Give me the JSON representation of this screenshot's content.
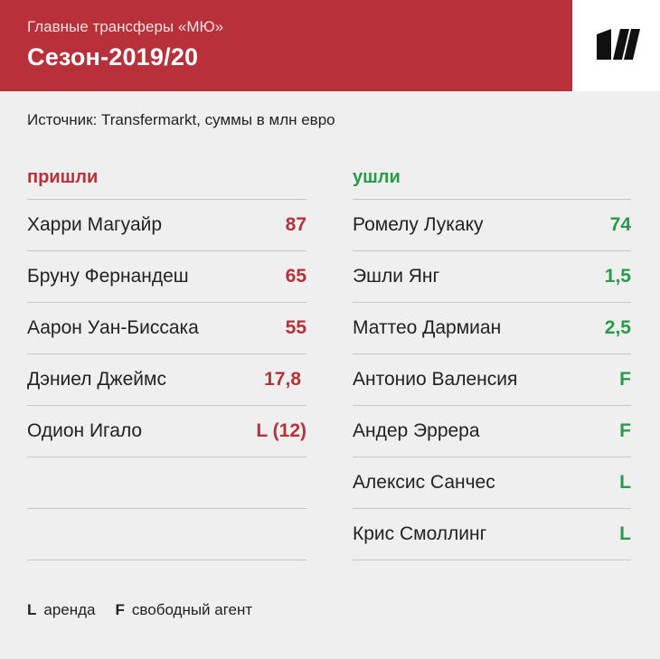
{
  "header": {
    "kicker": "Главные трансферы «МЮ»",
    "title": "Сезон-2019/20",
    "logo": "sports-ru-logo"
  },
  "source": "Источник: Transfermarkt, суммы в млн евро",
  "colors": {
    "accent_red": "#b7303a",
    "accent_green": "#2a9a4a",
    "background": "#efefef"
  },
  "incoming": {
    "title": "пришли",
    "rows": [
      {
        "name": "Харри Магуайр",
        "value": "87"
      },
      {
        "name": "Бруну Фернандеш",
        "value": "65"
      },
      {
        "name": "Аарон Уан-Биссака",
        "value": "55"
      },
      {
        "name": "Дэниел Джеймс",
        "value": "17,8"
      },
      {
        "name": "Одион Игало",
        "value": "L (12)"
      },
      {
        "name": "",
        "value": ""
      },
      {
        "name": "",
        "value": ""
      }
    ]
  },
  "outgoing": {
    "title": "ушли",
    "rows": [
      {
        "name": "Ромелу Лукаку",
        "value": "74"
      },
      {
        "name": "Эшли Янг",
        "value": "1,5"
      },
      {
        "name": "Маттео Дармиан",
        "value": "2,5"
      },
      {
        "name": "Антонио Валенсия",
        "value": "F"
      },
      {
        "name": "Андер Эррера",
        "value": "F"
      },
      {
        "name": "Алексис Санчес",
        "value": "L"
      },
      {
        "name": "Крис Смоллинг",
        "value": "L"
      }
    ]
  },
  "legend": [
    {
      "key": "L",
      "label": "аренда"
    },
    {
      "key": "F",
      "label": "свободный агент"
    }
  ]
}
